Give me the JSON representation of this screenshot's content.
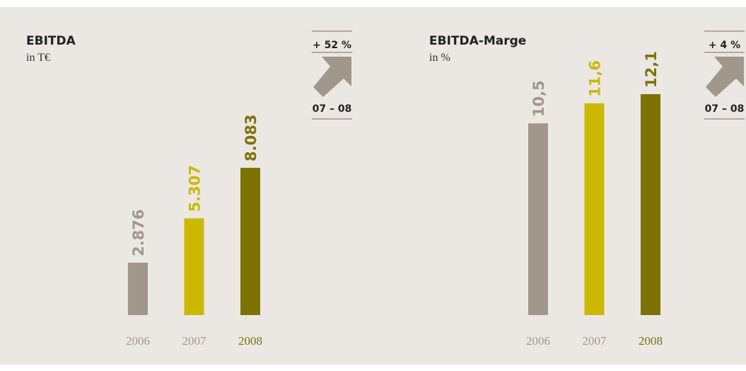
{
  "chart_data": [
    {
      "type": "bar",
      "title": "EBITDA",
      "subtitle": "in T€",
      "categories": [
        "2006",
        "2007",
        "2008"
      ],
      "values": [
        2876,
        5307,
        8083
      ],
      "value_labels": [
        "2.876",
        "5.307",
        "8.083"
      ],
      "colors": [
        "#a1978a",
        "#cdb800",
        "#7d7200"
      ],
      "label_colors": [
        "#a1978a",
        "#a1978a",
        "#7d7200"
      ],
      "annotations": [
        "+ 52 %",
        "07 – 08"
      ]
    },
    {
      "type": "bar",
      "title": "EBITDA-Marge",
      "subtitle": "in %",
      "categories": [
        "2006",
        "2007",
        "2008"
      ],
      "values": [
        10.5,
        11.6,
        12.1
      ],
      "value_labels": [
        "10,5",
        "11,6",
        "12,1"
      ],
      "colors": [
        "#a1978a",
        "#cdb800",
        "#7d7200"
      ],
      "label_colors": [
        "#a1978a",
        "#a1978a",
        "#7d7200"
      ],
      "annotations": [
        "+ 4 %",
        "07 – 08"
      ]
    }
  ]
}
